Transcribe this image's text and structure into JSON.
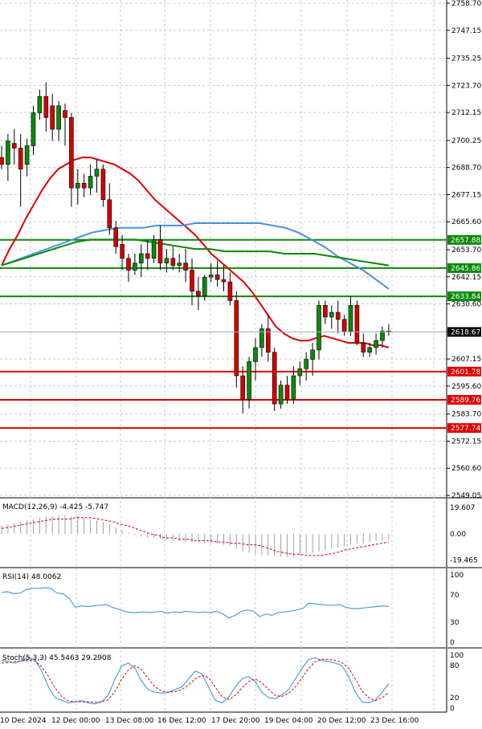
{
  "chart_data": [
    {
      "type": "candlestick",
      "name": "main",
      "ylim": [
        2549.05,
        2758.7
      ],
      "y_ticks": [
        "2758.70",
        "2747.15",
        "2735.25",
        "2723.70",
        "2712.15",
        "2700.25",
        "2688.70",
        "2677.15",
        "2665.60",
        "2653.70",
        "2642.15",
        "2630.60",
        "2618.67",
        "2607.15",
        "2595.60",
        "2583.70",
        "2572.15",
        "2560.60",
        "2549.05"
      ],
      "current_price": "2618.67",
      "support_resistance": [
        {
          "label": "2657.88",
          "value": 2657.88,
          "color": "#0a8a0a"
        },
        {
          "label": "2645.86",
          "value": 2645.86,
          "color": "#0a8a0a"
        },
        {
          "label": "2633.84",
          "value": 2633.84,
          "color": "#0a8a0a"
        },
        {
          "label": "2601.78",
          "value": 2601.78,
          "color": "#e00000"
        },
        {
          "label": "2589.76",
          "value": 2589.76,
          "color": "#e00000"
        },
        {
          "label": "2577.74",
          "value": 2577.74,
          "color": "#e00000"
        }
      ],
      "candles": [
        [
          2693,
          2698,
          2688,
          2690
        ],
        [
          2690,
          2703,
          2683,
          2700
        ],
        [
          2699,
          2705,
          2690,
          2697
        ],
        [
          2697,
          2703,
          2672,
          2688
        ],
        [
          2690,
          2701,
          2685,
          2698
        ],
        [
          2698,
          2715,
          2694,
          2712
        ],
        [
          2712,
          2722,
          2709,
          2719
        ],
        [
          2719,
          2725,
          2704,
          2710
        ],
        [
          2715,
          2720,
          2700,
          2705
        ],
        [
          2705,
          2717,
          2700,
          2715
        ],
        [
          2713,
          2716,
          2698,
          2710
        ],
        [
          2710,
          2712,
          2672,
          2680
        ],
        [
          2680,
          2688,
          2673,
          2682
        ],
        [
          2682,
          2686,
          2676,
          2680
        ],
        [
          2680,
          2690,
          2677,
          2685
        ],
        [
          2685,
          2692,
          2678,
          2688
        ],
        [
          2688,
          2690,
          2672,
          2675
        ],
        [
          2675,
          2682,
          2660,
          2663
        ],
        [
          2663,
          2666,
          2652,
          2655
        ],
        [
          2656,
          2660,
          2645,
          2650
        ],
        [
          2650,
          2652,
          2640,
          2645
        ],
        [
          2645,
          2652,
          2643,
          2648
        ],
        [
          2648,
          2656,
          2642,
          2652
        ],
        [
          2652,
          2658,
          2645,
          2650
        ],
        [
          2650,
          2660,
          2648,
          2658
        ],
        [
          2658,
          2664,
          2645,
          2648
        ],
        [
          2648,
          2654,
          2644,
          2650
        ],
        [
          2650,
          2655,
          2645,
          2647
        ],
        [
          2647,
          2652,
          2644,
          2648
        ],
        [
          2648,
          2654,
          2640,
          2645
        ],
        [
          2645,
          2650,
          2630,
          2636
        ],
        [
          2636,
          2642,
          2628,
          2634
        ],
        [
          2634,
          2643,
          2632,
          2642
        ],
        [
          2642,
          2648,
          2640,
          2643
        ],
        [
          2643,
          2649,
          2638,
          2641
        ],
        [
          2641,
          2647,
          2636,
          2640
        ],
        [
          2640,
          2644,
          2630,
          2632
        ],
        [
          2632,
          2636,
          2595,
          2600
        ],
        [
          2600,
          2604,
          2584,
          2590
        ],
        [
          2590,
          2608,
          2586,
          2606
        ],
        [
          2606,
          2616,
          2598,
          2612
        ],
        [
          2612,
          2622,
          2608,
          2620
        ],
        [
          2620,
          2626,
          2606,
          2610
        ],
        [
          2610,
          2612,
          2585,
          2588
        ],
        [
          2588,
          2598,
          2586,
          2596
        ],
        [
          2596,
          2600,
          2588,
          2590
        ],
        [
          2590,
          2604,
          2588,
          2600
        ],
        [
          2600,
          2606,
          2596,
          2603
        ],
        [
          2603,
          2610,
          2598,
          2607
        ],
        [
          2607,
          2614,
          2600,
          2611
        ],
        [
          2611,
          2632,
          2607,
          2630
        ],
        [
          2630,
          2632,
          2622,
          2625
        ],
        [
          2625,
          2630,
          2620,
          2627
        ],
        [
          2627,
          2632,
          2618,
          2624
        ],
        [
          2624,
          2626,
          2617,
          2619
        ],
        [
          2619,
          2634,
          2617,
          2630
        ],
        [
          2630,
          2632,
          2613,
          2614
        ],
        [
          2614,
          2618,
          2608,
          2610
        ],
        [
          2610,
          2614,
          2608,
          2612
        ],
        [
          2612,
          2618,
          2609,
          2615
        ],
        [
          2615,
          2621,
          2612,
          2619
        ],
        [
          2619,
          2622,
          2617,
          2619
        ]
      ],
      "series": [
        {
          "name": "",
          "color": "#e00000",
          "values": [
            2647,
            2654,
            2660,
            2667,
            2673,
            2679,
            2684,
            2688,
            2690,
            2692,
            2693,
            2693,
            2692,
            2691,
            2690,
            2688,
            2686,
            2683,
            2679,
            2675,
            2672,
            2669,
            2666,
            2663,
            2660,
            2656,
            2652,
            2649,
            2646,
            2643,
            2640,
            2636,
            2631,
            2626,
            2621,
            2618,
            2616,
            2615,
            2615,
            2616,
            2617,
            2616,
            2615,
            2614,
            2614,
            2614,
            2613,
            2613,
            2612
          ]
        },
        {
          "name": "",
          "color": "#4a90e2",
          "values": [
            2647,
            2649,
            2651,
            2653,
            2655,
            2657,
            2659,
            2661,
            2662,
            2663,
            2663,
            2663,
            2664,
            2664,
            2664,
            2665,
            2665,
            2665,
            2665,
            2665,
            2665,
            2664,
            2663,
            2661,
            2658,
            2655,
            2651,
            2648,
            2645,
            2641,
            2637
          ]
        },
        {
          "name": "",
          "color": "#0a8a0a",
          "values": [
            2647,
            2649,
            2651,
            2653,
            2655,
            2657,
            2658,
            2658,
            2658,
            2658,
            2657,
            2656,
            2655,
            2654,
            2654,
            2653,
            2653,
            2653,
            2653,
            2652,
            2652,
            2652,
            2651,
            2650,
            2649,
            2648,
            2647
          ]
        }
      ]
    },
    {
      "type": "bar",
      "name": "macd",
      "title": "MACD(12,26,9) -4.425 -5.747",
      "ylim": [
        -22,
        22
      ],
      "y_ticks": [
        "19.607",
        "0.00",
        "-19.465"
      ],
      "values": [
        6,
        7,
        8,
        9,
        10,
        11,
        12,
        13,
        13,
        14,
        14,
        13,
        13,
        12,
        11,
        10,
        9,
        7,
        5,
        3,
        1,
        -1,
        -2,
        -3,
        -3,
        -4,
        -4,
        -5,
        -5,
        -6,
        -6,
        -6,
        -7,
        -7,
        -7,
        -8,
        -9,
        -11,
        -13,
        -14,
        -15,
        -16,
        -16,
        -16,
        -17,
        -17,
        -17,
        -16,
        -15,
        -14,
        -13,
        -12,
        -11,
        -10,
        -9,
        -8,
        -7,
        -7,
        -6,
        -5,
        -5,
        -4
      ],
      "signal": [
        4,
        5,
        6,
        7,
        8,
        9,
        10,
        11,
        11,
        11,
        12,
        12,
        12,
        11,
        10,
        9,
        7,
        6,
        4,
        2,
        0,
        -1,
        -3,
        -3,
        -4,
        -4,
        -5,
        -5,
        -5,
        -6,
        -6,
        -7,
        -7,
        -8,
        -8,
        -9,
        -11,
        -13,
        -14,
        -15,
        -15,
        -16,
        -16,
        -16,
        -15,
        -14,
        -12,
        -11,
        -10,
        -9,
        -8,
        -7,
        -6
      ]
    },
    {
      "type": "line",
      "name": "rsi",
      "title": "RSI(14) 48.0062",
      "ylim": [
        0,
        100
      ],
      "y_ticks": [
        "100",
        "70",
        "30",
        "0"
      ],
      "values": [
        74,
        75,
        72,
        73,
        78,
        80,
        80,
        81,
        80,
        73,
        72,
        65,
        52,
        54,
        53,
        54,
        55,
        56,
        52,
        49,
        46,
        44,
        44,
        45,
        44,
        45,
        46,
        43,
        45,
        44,
        46,
        45,
        44,
        45,
        44,
        46,
        42,
        36,
        40,
        46,
        48,
        46,
        38,
        42,
        40,
        44,
        45,
        46,
        48,
        50,
        58,
        57,
        56,
        55,
        55,
        56,
        52,
        50,
        50,
        51,
        52,
        53,
        54,
        53
      ]
    },
    {
      "type": "line",
      "name": "stochastic",
      "title": "Stoch(5,3,3) 45.5463 29.2908",
      "ylim": [
        0,
        100
      ],
      "y_ticks": [
        "100",
        "80",
        "20",
        "0"
      ],
      "values": [
        90,
        88,
        85,
        90,
        95,
        92,
        70,
        40,
        20,
        15,
        10,
        12,
        14,
        10,
        8,
        12,
        25,
        55,
        80,
        85,
        75,
        50,
        35,
        30,
        28,
        30,
        35,
        40,
        55,
        70,
        65,
        40,
        15,
        10,
        20,
        40,
        55,
        60,
        50,
        30,
        20,
        18,
        25,
        35,
        55,
        75,
        92,
        95,
        90,
        88,
        85,
        80,
        60,
        30,
        12,
        10,
        15,
        30,
        46
      ],
      "signal": [
        85,
        86,
        88,
        89,
        90,
        89,
        78,
        60,
        38,
        22,
        14,
        12,
        12,
        12,
        11,
        12,
        16,
        32,
        55,
        72,
        80,
        72,
        55,
        40,
        32,
        30,
        31,
        35,
        44,
        55,
        62,
        58,
        40,
        22,
        16,
        24,
        38,
        50,
        55,
        48,
        35,
        24,
        22,
        28,
        40,
        57,
        75,
        88,
        92,
        92,
        90,
        86,
        75,
        55,
        32,
        20,
        14,
        20,
        29
      ]
    }
  ],
  "x_labels": [
    "10 Dec 2024",
    "12 Dec 00:00",
    "13 Dec 08:00",
    "16 Dec 12:00",
    "17 Dec 20:00",
    "19 Dec 04:00",
    "20 Dec 12:00",
    "23 Dec 16:00"
  ],
  "colors": {
    "up": "#0a8a0a",
    "down": "#d40000",
    "grid": "#c8c8d8",
    "text": "#000000"
  }
}
